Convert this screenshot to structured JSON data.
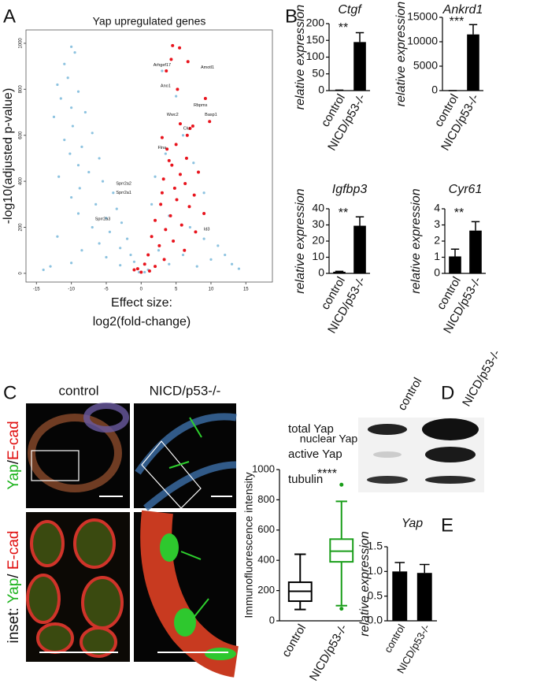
{
  "panel_labels": [
    "A",
    "B",
    "C",
    "D",
    "E"
  ],
  "image_panel": {
    "columns": [
      "control",
      "NICD/p53-/-"
    ],
    "rows": [
      [
        {
          "text": "Yap",
          "color": "#1db31d"
        },
        {
          "text": "/",
          "color": "#111111"
        },
        {
          "text": "E-cad",
          "color": "#e01010"
        }
      ],
      [
        {
          "text": "inset: ",
          "color": "#111111"
        },
        {
          "text": "Yap",
          "color": "#1db31d"
        },
        {
          "text": "/ ",
          "color": "#111111"
        },
        {
          "text": "E-cad",
          "color": "#e01010"
        }
      ]
    ]
  },
  "blot": {
    "columns": [
      "control",
      "NICD/p53-/-"
    ],
    "rows": [
      "total Yap",
      "active Yap",
      "tubulin"
    ]
  },
  "chart_data": [
    {
      "type": "scatter",
      "title": "Yap upregulated genes",
      "x_label": [
        "Effect size:",
        "log2(fold-change)"
      ],
      "y_label": "-log10(adjusted p-value)",
      "xlim": [
        -16.5,
        18.8
      ],
      "xticks": [
        -15,
        -10,
        -5,
        0,
        5,
        10,
        15
      ],
      "ylim": [
        -38,
        1058
      ],
      "yticks": [
        0,
        200,
        400,
        600,
        800,
        1000
      ],
      "series": [
        {
          "color": "#8dc3e0",
          "x": [
            -10,
            -9.5,
            -11,
            -10.5,
            -12,
            -9,
            -11.5,
            -10,
            -8,
            -12.5,
            -9.8,
            -7,
            -11,
            -8.5,
            -10.2,
            -6,
            -9,
            -7.5,
            -11.8,
            -5.5,
            -8.8,
            -4,
            -10,
            -6.5,
            -3.5,
            -9,
            -5,
            -2.8,
            -7,
            -4.5,
            -12,
            -2,
            -6,
            -3,
            -8.5,
            -1.5,
            -5,
            -1,
            -10,
            -3,
            -0.5,
            -13,
            -14,
            3,
            5,
            6,
            2,
            1.5,
            4,
            7,
            9,
            11,
            12,
            10,
            13,
            8,
            2.5,
            6,
            4,
            1,
            0.5,
            -0.3,
            14,
            3.5,
            7.5,
            9
          ],
          "values": [
            985,
            960,
            910,
            850,
            820,
            790,
            760,
            720,
            700,
            680,
            640,
            610,
            580,
            550,
            520,
            500,
            470,
            440,
            420,
            400,
            370,
            350,
            330,
            300,
            280,
            260,
            240,
            220,
            200,
            180,
            160,
            150,
            130,
            110,
            100,
            80,
            70,
            50,
            45,
            35,
            20,
            30,
            15,
            880,
            770,
            600,
            420,
            300,
            250,
            200,
            150,
            120,
            80,
            60,
            40,
            30,
            100,
            80,
            40,
            15,
            5,
            5,
            20,
            520,
            480,
            350
          ]
        },
        {
          "color": "#e8141d",
          "x": [
            4.5,
            5.5,
            4.3,
            6.7,
            3.6,
            5.2,
            9.2,
            9.8,
            5.6,
            7,
            6.6,
            7.4,
            3,
            5,
            3.7,
            6.5,
            4,
            4.4,
            8.2,
            5.6,
            3.2,
            6.3,
            4.8,
            3,
            7.6,
            5.1,
            2.8,
            6.9,
            9,
            4.2,
            2,
            5.8,
            3.5,
            7.8,
            1.5,
            4.6,
            2.6,
            6.2,
            1,
            3.3,
            0.5,
            2,
            -0.5,
            1.2,
            0,
            -1
          ],
          "values": [
            990,
            980,
            930,
            920,
            880,
            800,
            760,
            660,
            650,
            630,
            600,
            640,
            590,
            560,
            540,
            500,
            490,
            470,
            440,
            430,
            410,
            390,
            370,
            350,
            340,
            320,
            300,
            290,
            260,
            250,
            230,
            210,
            190,
            180,
            160,
            140,
            120,
            100,
            80,
            60,
            40,
            30,
            20,
            10,
            5,
            15
          ]
        }
      ],
      "annotations": [
        {
          "text": "Arhgef17",
          "x": 3,
          "y": 905
        },
        {
          "text": "Amotl1",
          "x": 9.5,
          "y": 895
        },
        {
          "text": "Ano1",
          "x": 3.5,
          "y": 815
        },
        {
          "text": "Rbpms",
          "x": 8.5,
          "y": 730
        },
        {
          "text": "Basp1",
          "x": 10,
          "y": 690
        },
        {
          "text": "Wwc2",
          "x": 4.5,
          "y": 690
        },
        {
          "text": "Clu",
          "x": 6.5,
          "y": 630
        },
        {
          "text": "Flna",
          "x": 3,
          "y": 545
        },
        {
          "text": "Sprr2a2",
          "x": -2.5,
          "y": 390
        },
        {
          "text": "Sprr2a1",
          "x": -2.5,
          "y": 350
        },
        {
          "text": "Sprr2a3",
          "x": -5.5,
          "y": 235
        },
        {
          "text": "Id3",
          "x": 9.4,
          "y": 192
        }
      ]
    },
    {
      "type": "bar",
      "title": "Ctgf",
      "y_label": "relative expression",
      "categories": [
        "control",
        "NICD/p53-/-"
      ],
      "values": [
        1,
        145
      ],
      "errors": [
        0.5,
        28
      ],
      "color": "#000000",
      "ylim": [
        0,
        200
      ],
      "yticks": [
        0,
        50,
        100,
        150,
        200
      ],
      "annotation": "**"
    },
    {
      "type": "bar",
      "title": "Ankrd1",
      "y_label": "relative expression",
      "categories": [
        "control",
        "NICD/p53-/-"
      ],
      "values": [
        5,
        11500
      ],
      "errors": [
        3,
        2000
      ],
      "color": "#000000",
      "ylim": [
        0,
        15000
      ],
      "yticks": [
        0,
        5000,
        10000,
        15000
      ],
      "annotation": "***"
    },
    {
      "type": "bar",
      "title": "Igfbp3",
      "y_label": "relative expression",
      "categories": [
        "control",
        "NICD/p53-/-"
      ],
      "values": [
        1,
        29.5
      ],
      "errors": [
        0.3,
        5.5
      ],
      "color": "#000000",
      "ylim": [
        0,
        40
      ],
      "yticks": [
        0,
        10,
        20,
        30,
        40
      ],
      "annotation": "**"
    },
    {
      "type": "bar",
      "title": "Cyr61",
      "y_label": "relative expression",
      "categories": [
        "control",
        "NICD/p53-/-"
      ],
      "values": [
        1.05,
        2.65
      ],
      "errors": [
        0.45,
        0.55
      ],
      "color": "#000000",
      "ylim": [
        0,
        4
      ],
      "yticks": [
        0,
        1,
        2,
        3,
        4
      ],
      "annotation": "**"
    },
    {
      "type": "box",
      "title": "nuclear Yap",
      "y_label": "Immunofluorescence intensity",
      "categories": [
        "control",
        "NICD/p53-/-"
      ],
      "colors": [
        "#000000",
        "#1a9e1a"
      ],
      "whisker_low": [
        75,
        100
      ],
      "q1": [
        130,
        390
      ],
      "median": [
        195,
        460
      ],
      "q3": [
        255,
        540
      ],
      "whisker_high": [
        440,
        790
      ],
      "outliers": [
        [],
        [
          900,
          80
        ]
      ],
      "ylim": [
        0,
        1000
      ],
      "yticks": [
        0,
        200,
        400,
        600,
        800,
        1000
      ],
      "annotation": "****"
    },
    {
      "type": "bar",
      "title": "Yap",
      "y_label": "relative expression",
      "categories": [
        "control",
        "NICD/p53-/-"
      ],
      "values": [
        1.0,
        0.97
      ],
      "errors": [
        0.18,
        0.17
      ],
      "color": "#000000",
      "ylim": [
        0,
        1.5
      ],
      "yticks": [
        {
          "value": 0,
          "label": "0.0"
        },
        {
          "value": 0.5,
          "label": "0.5"
        },
        {
          "value": 1,
          "label": "1.0"
        },
        {
          "value": 1.5,
          "label": "1.5"
        }
      ]
    }
  ]
}
